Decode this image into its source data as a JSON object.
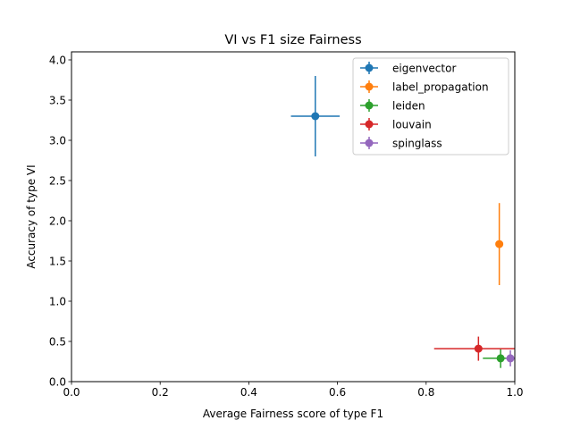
{
  "chart_data": {
    "type": "scatter",
    "title": "VI vs F1 size Fairness",
    "xlabel": "Average Fairness score of type F1",
    "ylabel": "Accuracy of type VI",
    "xlim": [
      0.0,
      1.0
    ],
    "ylim": [
      0.0,
      4.1
    ],
    "xticks": [
      "0.0",
      "0.2",
      "0.4",
      "0.6",
      "0.8",
      "1.0"
    ],
    "yticks": [
      "0.0",
      "0.5",
      "1.0",
      "1.5",
      "2.0",
      "2.5",
      "3.0",
      "3.5",
      "4.0"
    ],
    "grid": false,
    "legend_position": "top-right",
    "series": [
      {
        "name": "eigenvector",
        "color": "#1f77b4",
        "x": 0.55,
        "y": 3.3,
        "xerr": 0.055,
        "yerr": 0.5
      },
      {
        "name": "label_propagation",
        "color": "#ff7f0e",
        "x": 0.965,
        "y": 1.71,
        "xerr": 0.005,
        "yerr": 0.51
      },
      {
        "name": "leiden",
        "color": "#2ca02c",
        "x": 0.968,
        "y": 0.29,
        "xerr": 0.04,
        "yerr": 0.12
      },
      {
        "name": "louvain",
        "color": "#d62728",
        "x": 0.918,
        "y": 0.41,
        "xerr": 0.1,
        "yerr": 0.15
      },
      {
        "name": "spinglass",
        "color": "#9467bd",
        "x": 0.99,
        "y": 0.29,
        "xerr": 0.01,
        "yerr": 0.1
      }
    ]
  }
}
